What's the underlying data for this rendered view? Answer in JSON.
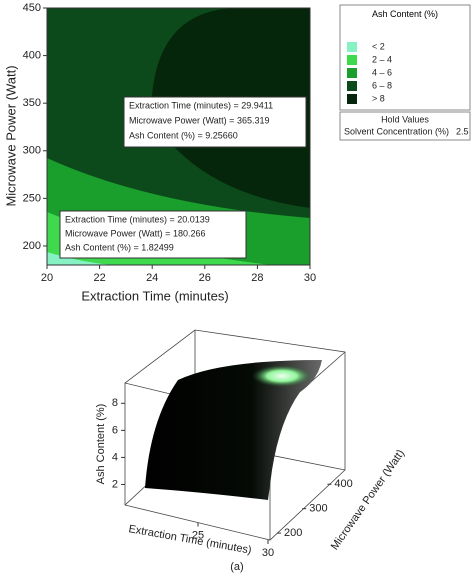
{
  "chart_data": [
    {
      "type": "contour",
      "x_label": "Extraction Time (minutes)",
      "y_label": "Microwave Power (Watt)",
      "xlim": [
        20,
        30
      ],
      "ylim": [
        180,
        450
      ],
      "xticks": [
        20,
        22,
        24,
        26,
        28,
        30
      ],
      "yticks": [
        200,
        250,
        300,
        350,
        400,
        450
      ],
      "legend": {
        "title": "Ash Content (%)",
        "levels": [
          {
            "label": "< 2",
            "color": "#86f2c4"
          },
          {
            "label": "2 – 4",
            "color": "#3fd94e"
          },
          {
            "label": "4 – 6",
            "color": "#1a9e2c"
          },
          {
            "label": "6 – 8",
            "color": "#0c4a1b"
          },
          {
            "label": "> 8",
            "color": "#05260b"
          }
        ]
      },
      "hold_values": {
        "title": "Hold Values",
        "label": "Solvent Concentration (%)",
        "value": 2.5
      },
      "annotations": [
        [
          "Extraction Time (minutes) = 29.9411",
          "Microwave Power (Watt) = 365.319",
          "Ash Content (%) = 9.25660"
        ],
        [
          "Extraction Time (minutes) = 20.0139",
          "Microwave Power (Watt) = 180.266",
          "Ash Content (%) = 1.82499"
        ]
      ]
    },
    {
      "type": "surface",
      "x_label": "Extraction Time (minutes)",
      "y_label": "Microwave Power (Watt)",
      "z_label": "Ash Content (%)",
      "xlim": [
        20,
        30
      ],
      "ylim": [
        180,
        450
      ],
      "zlim": [
        1,
        9.5
      ],
      "xticks": [
        25,
        30
      ],
      "yticks": [
        200,
        300,
        400
      ],
      "zticks": [
        2,
        4,
        6,
        8
      ]
    }
  ],
  "caption": "(a)"
}
